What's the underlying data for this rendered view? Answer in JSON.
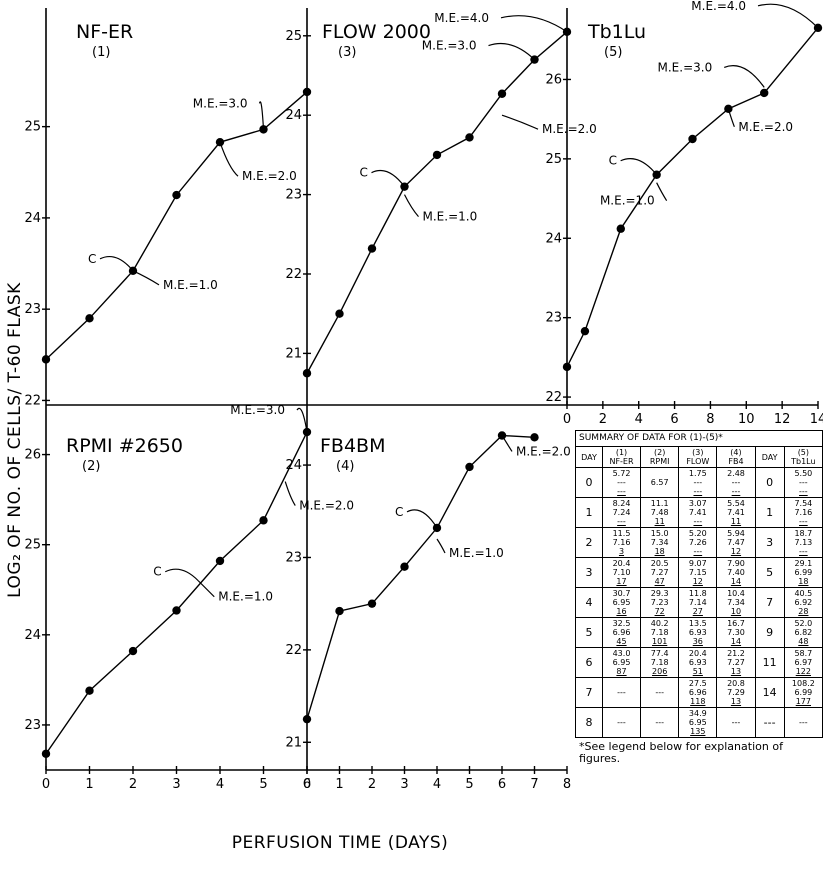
{
  "figure": {
    "y_axis_label": "LOG₂ OF NO. OF CELLS/ T-60 FLASK",
    "x_axis_label": "PERFUSION TIME (DAYS)"
  },
  "chart_data": [
    {
      "type": "line",
      "title": "NF-ER",
      "subtitle": "(1)",
      "x": [
        0,
        1,
        2,
        3,
        4,
        5,
        6
      ],
      "series": [
        {
          "values": [
            22.45,
            22.9,
            23.42,
            24.25,
            24.83,
            24.97,
            25.38
          ]
        }
      ],
      "xlim": [
        0,
        6
      ],
      "ylim": [
        21.95,
        26.3
      ],
      "yticks": [
        22,
        23,
        24,
        25
      ],
      "xticks": [],
      "annotations": [
        {
          "text": "C",
          "x": 2,
          "y": 23.42
        },
        {
          "text": "M.E.=1.0",
          "x": 2,
          "y": 23.42
        },
        {
          "text": "M.E.=2.0",
          "x": 4,
          "y": 24.83
        },
        {
          "text": "M.E.=3.0",
          "x": 5,
          "y": 24.97
        }
      ]
    },
    {
      "type": "line",
      "title": "RPMI #2650",
      "subtitle": "(2)",
      "x": [
        0,
        1,
        2,
        3,
        4,
        5,
        6
      ],
      "series": [
        {
          "values": [
            22.68,
            23.38,
            23.82,
            24.27,
            24.82,
            25.27,
            26.25
          ]
        }
      ],
      "xlim": [
        0,
        6
      ],
      "ylim": [
        22.5,
        26.55
      ],
      "yticks": [
        23,
        24,
        25,
        26
      ],
      "xticks": [
        "0",
        "1",
        "2",
        "3",
        "4",
        "5",
        "6"
      ],
      "annotations": [
        {
          "text": "C",
          "x": 3.5,
          "y": 24.6
        },
        {
          "text": "M.E.=1.0",
          "x": 3.5,
          "y": 24.6
        },
        {
          "text": "M.E.=2.0",
          "x": 5.5,
          "y": 25.7
        },
        {
          "text": "M.E.=3.0",
          "x": 6,
          "y": 26.25
        }
      ]
    },
    {
      "type": "line",
      "title": "FLOW 2000",
      "subtitle": "(3)",
      "x": [
        0,
        1,
        2,
        3,
        4,
        5,
        6,
        7,
        8
      ],
      "series": [
        {
          "values": [
            20.75,
            21.5,
            22.32,
            23.1,
            23.5,
            23.72,
            24.27,
            24.7,
            25.05
          ]
        }
      ],
      "xlim": [
        0,
        8
      ],
      "ylim": [
        20.35,
        25.35
      ],
      "yticks": [
        21,
        22,
        23,
        24,
        25
      ],
      "xticks": [],
      "annotations": [
        {
          "text": "C",
          "x": 3,
          "y": 23.1
        },
        {
          "text": "M.E.=1.0",
          "x": 3,
          "y": 23.0
        },
        {
          "text": "M.E.=2.0",
          "x": 6,
          "y": 24.0
        },
        {
          "text": "M.E.=3.0",
          "x": 7,
          "y": 24.7
        },
        {
          "text": "M.E.=4.0",
          "x": 8,
          "y": 25.05
        }
      ]
    },
    {
      "type": "line",
      "title": "FB4BM",
      "subtitle": "(4)",
      "x": [
        0,
        1,
        2,
        3,
        4,
        5,
        6,
        7
      ],
      "series": [
        {
          "values": [
            21.25,
            22.42,
            22.5,
            22.9,
            23.32,
            23.98,
            24.32,
            24.3
          ]
        }
      ],
      "xlim": [
        0,
        8
      ],
      "ylim": [
        20.7,
        24.65
      ],
      "yticks": [
        21,
        22,
        23,
        24
      ],
      "xticks": [
        "0",
        "1",
        "2",
        "3",
        "4",
        "5",
        "6",
        "7",
        "8"
      ],
      "annotations": [
        {
          "text": "C",
          "x": 4,
          "y": 23.32
        },
        {
          "text": "M.E.=1.0",
          "x": 4,
          "y": 23.2
        },
        {
          "text": "M.E.=2.0",
          "x": 6,
          "y": 24.32
        }
      ]
    },
    {
      "type": "line",
      "title": "Tb1Lu",
      "subtitle": "(5)",
      "x": [
        0,
        1,
        3,
        5,
        7,
        9,
        11,
        14
      ],
      "series": [
        {
          "values": [
            22.38,
            22.83,
            24.12,
            24.8,
            25.25,
            25.63,
            25.83,
            26.65
          ]
        }
      ],
      "xlim": [
        0,
        14
      ],
      "ylim": [
        21.9,
        26.9
      ],
      "yticks": [
        22,
        23,
        24,
        25,
        26
      ],
      "xticks": [
        "0",
        "2",
        "4",
        "6",
        "8",
        "10",
        "12",
        "14"
      ],
      "annotations": [
        {
          "text": "C",
          "x": 5,
          "y": 24.8
        },
        {
          "text": "M.E.=1.0",
          "x": 5,
          "y": 24.7
        },
        {
          "text": "M.E.=2.0",
          "x": 9,
          "y": 25.63
        },
        {
          "text": "M.E.=3.0",
          "x": 11,
          "y": 25.9
        },
        {
          "text": "M.E.=4.0",
          "x": 14,
          "y": 26.65
        }
      ]
    }
  ],
  "summary_table": {
    "caption": "SUMMARY OF DATA FOR (1)-(5)*",
    "day_label": "DAY",
    "columns": [
      {
        "num": "(1)",
        "name": "NF-ER"
      },
      {
        "num": "(2)",
        "name": "RPMI"
      },
      {
        "num": "(3)",
        "name": "FLOW"
      },
      {
        "num": "(4)",
        "name": "FB4"
      }
    ],
    "col5": {
      "num": "(5)",
      "name": "Tb1Lu"
    },
    "rows": [
      {
        "day": "0",
        "cells": [
          [
            "5.72",
            "---",
            "---"
          ],
          [
            "6.57",
            "",
            ""
          ],
          [
            "1.75",
            "---",
            "---"
          ],
          [
            "2.48",
            "---",
            "---"
          ]
        ],
        "day5": "0",
        "cell5": [
          "5.50",
          "---",
          "---"
        ]
      },
      {
        "day": "1",
        "cells": [
          [
            "8.24",
            "7.24",
            "---"
          ],
          [
            "11.1",
            "7.48",
            "11"
          ],
          [
            "3.07",
            "7.41",
            "---"
          ],
          [
            "5.54",
            "7.41",
            "11"
          ]
        ],
        "day5": "1",
        "cell5": [
          "7.54",
          "7.16",
          "---"
        ]
      },
      {
        "day": "2",
        "cells": [
          [
            "11.5",
            "7.16",
            "3"
          ],
          [
            "15.0",
            "7.34",
            "18"
          ],
          [
            "5.20",
            "7.26",
            "---"
          ],
          [
            "5.94",
            "7.47",
            "12"
          ]
        ],
        "day5": "3",
        "cell5": [
          "18.7",
          "7.13",
          "---"
        ]
      },
      {
        "day": "3",
        "cells": [
          [
            "20.4",
            "7.10",
            "17"
          ],
          [
            "20.5",
            "7.27",
            "47"
          ],
          [
            "9.07",
            "7.15",
            "12"
          ],
          [
            "7.90",
            "7.40",
            "14"
          ]
        ],
        "day5": "5",
        "cell5": [
          "29.1",
          "6.99",
          "18"
        ]
      },
      {
        "day": "4",
        "cells": [
          [
            "30.7",
            "6.95",
            "16"
          ],
          [
            "29.3",
            "7.23",
            "72"
          ],
          [
            "11.8",
            "7.14",
            "27"
          ],
          [
            "10.4",
            "7.34",
            "10"
          ]
        ],
        "day5": "7",
        "cell5": [
          "40.5",
          "6.92",
          "28"
        ]
      },
      {
        "day": "5",
        "cells": [
          [
            "32.5",
            "6.96",
            "45"
          ],
          [
            "40.2",
            "7.18",
            "101"
          ],
          [
            "13.5",
            "6.93",
            "36"
          ],
          [
            "16.7",
            "7.30",
            "14"
          ]
        ],
        "day5": "9",
        "cell5": [
          "52.0",
          "6.82",
          "48"
        ]
      },
      {
        "day": "6",
        "cells": [
          [
            "43.0",
            "6.95",
            "87"
          ],
          [
            "77.4",
            "7.18",
            "206"
          ],
          [
            "20.4",
            "6.93",
            "51"
          ],
          [
            "21.2",
            "7.27",
            "13"
          ]
        ],
        "day5": "11",
        "cell5": [
          "58.7",
          "6.97",
          "122"
        ]
      },
      {
        "day": "7",
        "cells": [
          [
            "---",
            "",
            ""
          ],
          [
            "---",
            "",
            ""
          ],
          [
            "27.5",
            "6.96",
            "118"
          ],
          [
            "20.8",
            "7.29",
            "13"
          ]
        ],
        "day5": "14",
        "cell5": [
          "108.2",
          "6.99",
          "177"
        ]
      },
      {
        "day": "8",
        "cells": [
          [
            "---",
            "",
            ""
          ],
          [
            "---",
            "",
            ""
          ],
          [
            "34.9",
            "6.95",
            "135"
          ],
          [
            "---",
            "",
            ""
          ]
        ],
        "day5": "---",
        "cell5": [
          "---",
          "",
          ""
        ]
      }
    ],
    "footnote": "*See legend below for explanation of figures."
  }
}
